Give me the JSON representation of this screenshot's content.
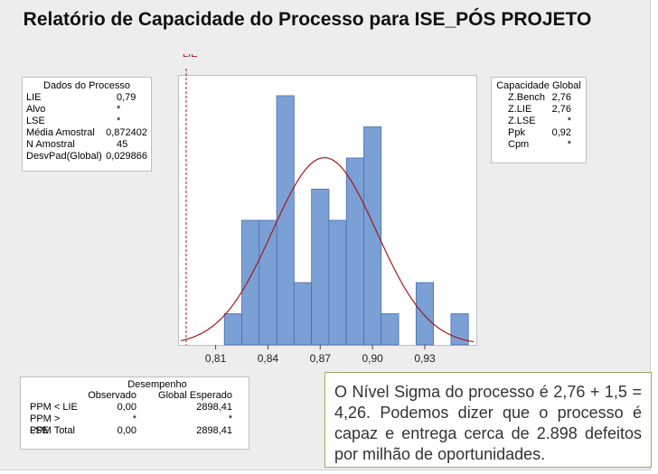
{
  "title": "Relatório de Capacidade do Processo para ISE_PÓS PROJETO",
  "process_data": {
    "header": "Dados do Processo",
    "rows": [
      {
        "label": "LIE",
        "value": "0,79"
      },
      {
        "label": "Alvo",
        "value": "*"
      },
      {
        "label": "LSE",
        "value": "*"
      },
      {
        "label": "Média Amostral",
        "value": "0,872402"
      },
      {
        "label": "N Amostral",
        "value": "45"
      },
      {
        "label": "DesvPad(Global)",
        "value": "0,029866"
      }
    ]
  },
  "overall_capability": {
    "header": "Capacidade Global",
    "rows": [
      {
        "label": "Z.Bench",
        "value": "2,76"
      },
      {
        "label": "Z.LIE",
        "value": "2,76"
      },
      {
        "label": "Z.LSE",
        "value": "*"
      },
      {
        "label": "Ppk",
        "value": "0,92"
      },
      {
        "label": "Cpm",
        "value": "*"
      }
    ]
  },
  "performance": {
    "header": "Desempenho",
    "col_observed": "Observado",
    "col_expected": "Global Esperado",
    "rows": [
      {
        "label": "PPM < LIE",
        "observed": "0,00",
        "expected": "2898,41"
      },
      {
        "label": "PPM > LSE",
        "observed": "*",
        "expected": "*"
      },
      {
        "label": "PPM Total",
        "observed": "0,00",
        "expected": "2898,41"
      }
    ]
  },
  "callout_text": "O Nível Sigma do processo é 2,76 + 1,5 = 4,26. Podemos dizer que o processo é capaz e entrega cerca de 2.898 defeitos por milhão de oportunidades.",
  "colors": {
    "bar_fill": "#7ba0d6",
    "bar_stroke": "#4a6ea8",
    "curve": "#a0191e",
    "lie_line": "#a0191e"
  },
  "chart_data": {
    "type": "bar",
    "bin_width": 0.01,
    "bins": [
      {
        "start": 0.815,
        "count": 1
      },
      {
        "start": 0.825,
        "count": 4
      },
      {
        "start": 0.835,
        "count": 4
      },
      {
        "start": 0.845,
        "count": 8
      },
      {
        "start": 0.855,
        "count": 2
      },
      {
        "start": 0.865,
        "count": 5
      },
      {
        "start": 0.875,
        "count": 4
      },
      {
        "start": 0.885,
        "count": 6
      },
      {
        "start": 0.895,
        "count": 7
      },
      {
        "start": 0.905,
        "count": 1
      },
      {
        "start": 0.915,
        "count": 0
      },
      {
        "start": 0.925,
        "count": 2
      },
      {
        "start": 0.935,
        "count": 0
      },
      {
        "start": 0.945,
        "count": 1
      }
    ],
    "x_ticks": [
      {
        "value": 0.81,
        "label": "0,81"
      },
      {
        "value": 0.84,
        "label": "0,84"
      },
      {
        "value": 0.87,
        "label": "0,87"
      },
      {
        "value": 0.9,
        "label": "0,90"
      },
      {
        "value": 0.93,
        "label": "0,93"
      }
    ],
    "xlim": [
      0.79,
      0.958
    ],
    "ylim": [
      0,
      8
    ],
    "normal_curve": {
      "mean": 0.872402,
      "stdev": 0.029866,
      "n": 45
    },
    "lie": {
      "value": 0.79,
      "label": "LIE"
    }
  }
}
